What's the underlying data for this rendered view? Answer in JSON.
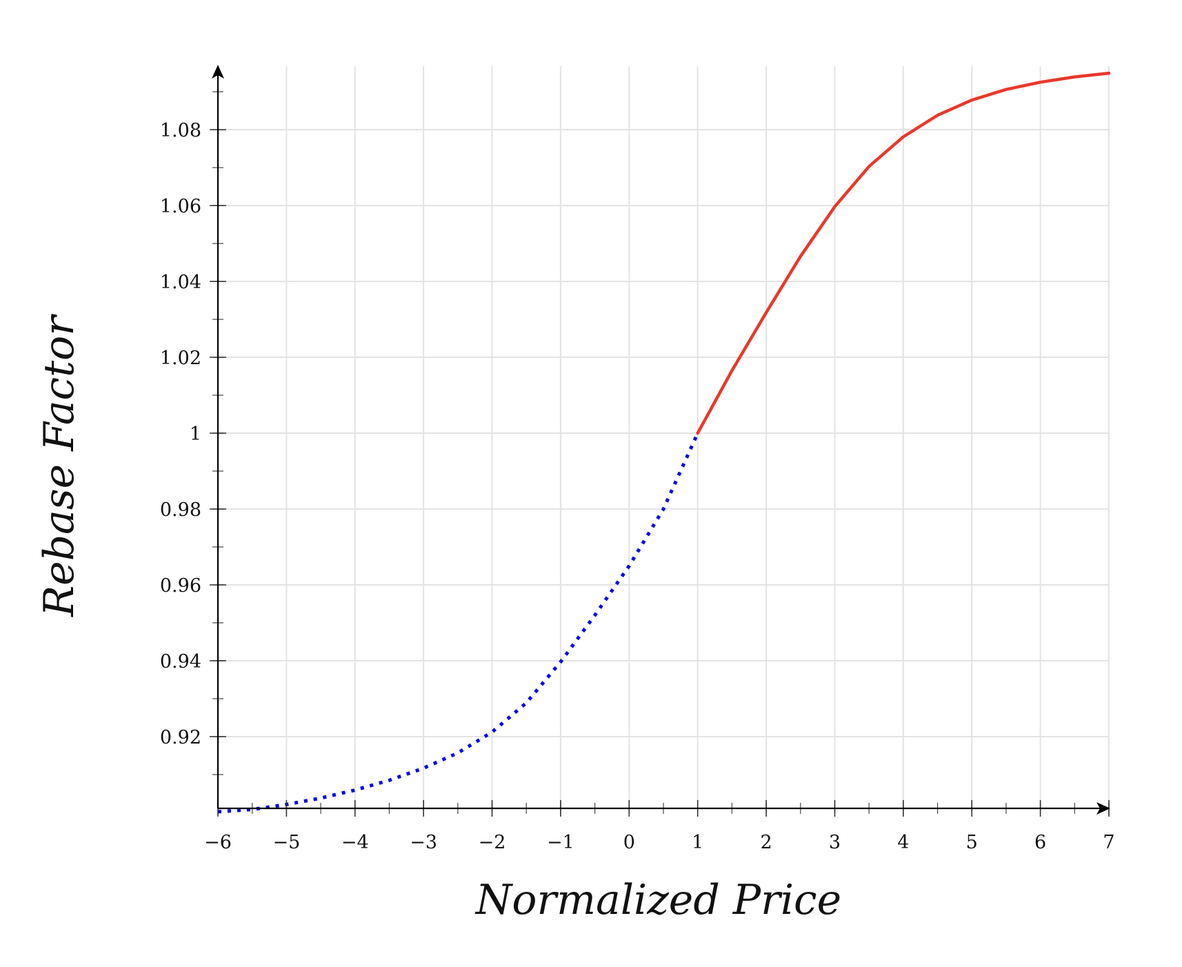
{
  "chart_data": {
    "type": "line",
    "title": "",
    "xlabel": "Normalized Price",
    "ylabel": "Rebase Factor",
    "xlim": [
      -6,
      7
    ],
    "ylim": [
      0.9,
      1.1
    ],
    "grid": true,
    "legend": "none",
    "x_ticks": [
      -6,
      -5,
      -4,
      -3,
      -2,
      -1,
      0,
      1,
      2,
      3,
      4,
      5,
      6,
      7
    ],
    "x_tick_labels": [
      "−6",
      "−5",
      "−4",
      "−3",
      "−2",
      "−1",
      "0",
      "1",
      "2",
      "3",
      "4",
      "5",
      "6",
      "7"
    ],
    "y_ticks": [
      0.92,
      0.94,
      0.96,
      0.98,
      1,
      1.02,
      1.04,
      1.06,
      1.08
    ],
    "y_tick_labels": [
      "0.92",
      "0.94",
      "0.96",
      "0.98",
      "1",
      "1.02",
      "1.04",
      "1.06",
      "1.08"
    ],
    "series": [
      {
        "style": "dotted",
        "color": "#0000ee",
        "x": [
          -6,
          -5.5,
          -5,
          -4.5,
          -4,
          -3.5,
          -3,
          -2.5,
          -2,
          -1.5,
          -1,
          -0.5,
          0,
          0.5,
          1
        ],
        "y": [
          0.9002,
          0.9008,
          0.9021,
          0.9038,
          0.9059,
          0.9085,
          0.9117,
          0.9157,
          0.9212,
          0.9289,
          0.9397,
          0.952,
          0.965,
          0.98,
          1.0
        ]
      },
      {
        "style": "solid",
        "color": "#e8392a",
        "x": [
          1,
          1.5,
          2,
          2.5,
          3,
          3.5,
          4,
          4.5,
          5,
          5.5,
          6,
          6.5,
          7
        ],
        "y": [
          1.0,
          1.0165,
          1.0318,
          1.0466,
          1.0597,
          1.0703,
          1.0781,
          1.0838,
          1.0878,
          1.0906,
          1.0925,
          1.0939,
          1.0949
        ]
      }
    ]
  }
}
